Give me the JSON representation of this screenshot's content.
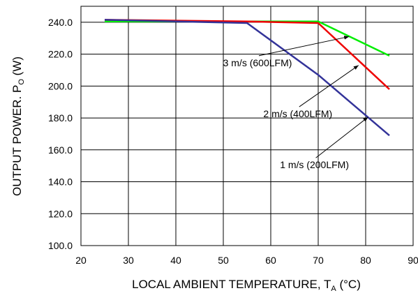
{
  "chart_data": {
    "type": "line",
    "xlabel": "LOCAL AMBIENT TEMPERATURE, T",
    "xlabel_subscript": "A",
    "xlabel_suffix": " (°C)",
    "ylabel": "OUTPUT POWER. P",
    "ylabel_subscript": "O",
    "ylabel_suffix": " (W)",
    "xlim": [
      20,
      90
    ],
    "ylim": [
      100,
      250
    ],
    "x_ticks": [
      20,
      30,
      40,
      50,
      60,
      70,
      80,
      90
    ],
    "x_tick_labels": [
      "20",
      "30",
      "40",
      "50",
      "60",
      "70",
      "80",
      "90"
    ],
    "y_ticks": [
      100,
      120,
      140,
      160,
      180,
      200,
      220,
      240
    ],
    "y_tick_labels": [
      "100.0",
      "120.0",
      "140.0",
      "160.0",
      "180.0",
      "200.0",
      "220.0",
      "240.0"
    ],
    "grid": true,
    "series": [
      {
        "color": "#00ee00",
        "x": [
          25,
          55,
          70,
          85
        ],
        "y": [
          240.5,
          240.5,
          240.5,
          219
        ]
      },
      {
        "color": "#ee0000",
        "x": [
          25,
          55,
          70,
          85
        ],
        "y": [
          241.5,
          240.5,
          239.5,
          198
        ]
      },
      {
        "color": "#333399",
        "x": [
          25,
          55,
          70,
          85
        ],
        "y": [
          241.5,
          239.5,
          207,
          169
        ]
      }
    ],
    "annotations": [
      {
        "text": "3 m/s (600LFM)",
        "arrow_from": [
          57.5,
          219
        ],
        "arrow_to": [
          76.5,
          231
        ]
      },
      {
        "text": "2 m/s (400LFM)",
        "arrow_from": [
          66,
          187
        ],
        "arrow_to": [
          78.5,
          213
        ]
      },
      {
        "text": "1 m/s (200LFM)",
        "arrow_from": [
          69.5,
          155
        ],
        "arrow_to": [
          80.5,
          180.5
        ]
      }
    ]
  }
}
